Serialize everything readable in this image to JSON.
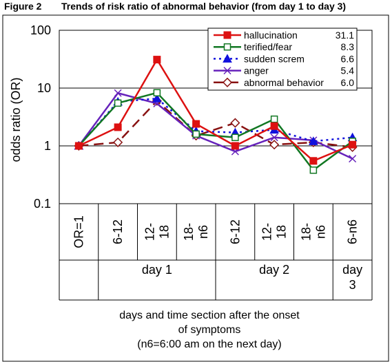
{
  "figure": {
    "label": "Figure 2",
    "title": "Trends of risk ratio of abnormal behavior (from day 1 to day 3)"
  },
  "caption": {
    "line1": "days and time section after the onset",
    "line2": "of symptoms",
    "line3": "(n6=6:00 am on the next day)"
  },
  "chart_data": {
    "type": "line",
    "ylabel": "odds ratio (OR)",
    "yscale": "log",
    "ylim": [
      0.1,
      100
    ],
    "yticks": [
      "0.1",
      "1",
      "10",
      "100"
    ],
    "categories": [
      [
        "OR=1"
      ],
      [
        "6-12"
      ],
      [
        "12-",
        "18"
      ],
      [
        "18-",
        "n6"
      ],
      [
        "6-12"
      ],
      [
        "12-",
        "18"
      ],
      [
        "18-",
        "n6"
      ],
      [
        "6-n6"
      ]
    ],
    "groups": [
      {
        "label": [
          "day 1"
        ],
        "from": 1,
        "to": 3
      },
      {
        "label": [
          "day 2"
        ],
        "from": 4,
        "to": 6
      },
      {
        "label": [
          "day",
          "3"
        ],
        "from": 7,
        "to": 7
      }
    ],
    "grid": "horizontal",
    "legend_position": "top-right",
    "series": [
      {
        "name": "hallucination",
        "legend_value": "31.1",
        "color": "#dd1111",
        "dash": "solid",
        "marker": "filled-square",
        "values": [
          1,
          2.1,
          31.1,
          2.4,
          1.0,
          2.2,
          0.55,
          1.05
        ]
      },
      {
        "name": "terified/fear",
        "legend_value": "8.3",
        "color": "#117722",
        "dash": "solid",
        "marker": "open-square",
        "values": [
          1,
          5.5,
          8.3,
          1.6,
          1.4,
          2.9,
          0.38,
          1.2
        ]
      },
      {
        "name": "sudden screm",
        "legend_value": "6.6",
        "color": "#1111dd",
        "dash": "dotted",
        "marker": "filled-triangle",
        "values": [
          1,
          5.8,
          6.6,
          1.8,
          1.7,
          1.9,
          1.2,
          1.4
        ]
      },
      {
        "name": "anger",
        "legend_value": "5.4",
        "color": "#6622bb",
        "dash": "solid",
        "marker": "x",
        "values": [
          1,
          8.2,
          5.4,
          1.5,
          0.8,
          1.4,
          1.25,
          0.6
        ]
      },
      {
        "name": "abnormal behavior",
        "legend_value": "6.0",
        "color": "#881111",
        "dash": "dashed",
        "marker": "open-diamond",
        "values": [
          1,
          1.15,
          6.0,
          1.5,
          2.5,
          1.05,
          1.15,
          0.95
        ]
      }
    ]
  }
}
